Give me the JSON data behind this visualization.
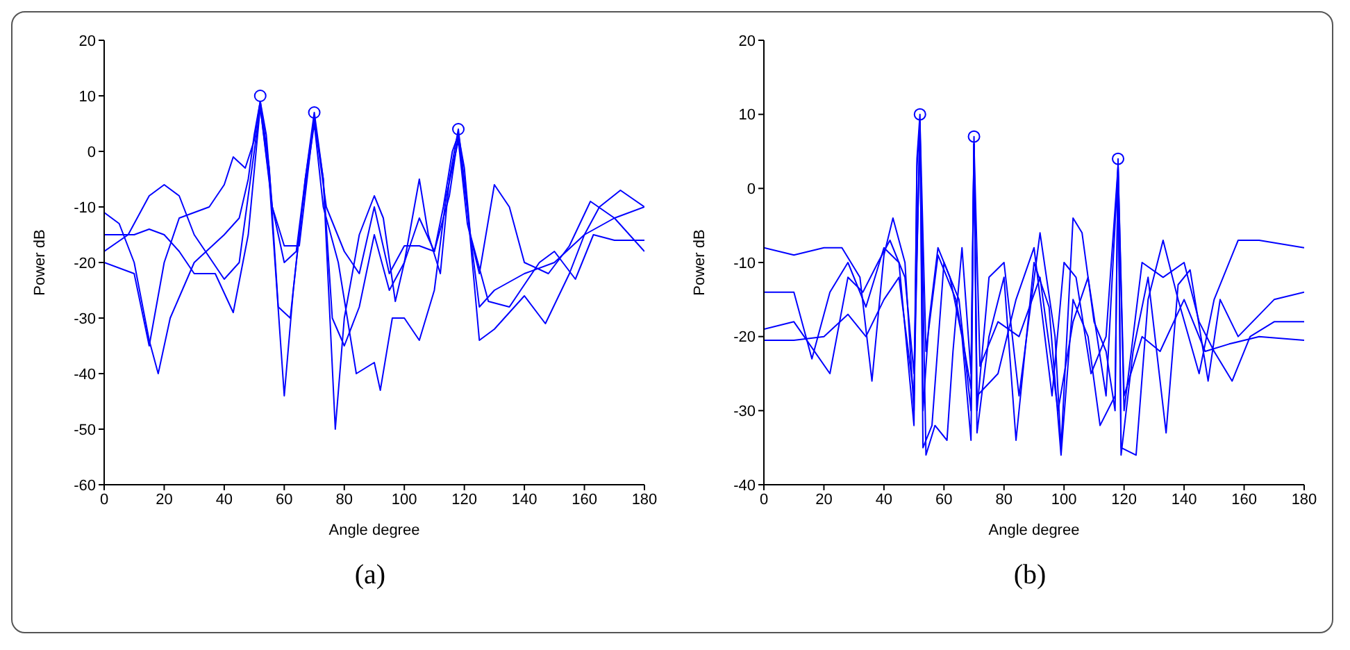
{
  "chart_data": [
    {
      "type": "line",
      "xlabel": "Angle degree",
      "ylabel": "Power dB",
      "annotations": [
        "(a)"
      ],
      "xlim": [
        0,
        180
      ],
      "xticks": [
        0,
        20,
        40,
        60,
        80,
        100,
        120,
        140,
        160,
        180
      ],
      "ylim": [
        -60,
        20
      ],
      "yticks": [
        -60,
        -50,
        -40,
        -30,
        -20,
        -10,
        0,
        10,
        20
      ],
      "series": [
        {
          "color": "#0000ff",
          "x": [
            0,
            5,
            10,
            15,
            18,
            22,
            30,
            40,
            45,
            48,
            50,
            52,
            54,
            56,
            60,
            64,
            67,
            70,
            73,
            76,
            80,
            85,
            90,
            95,
            100,
            105,
            110,
            113,
            116,
            118,
            120,
            122,
            125,
            130,
            140,
            150,
            160,
            170,
            180
          ],
          "values": [
            -11,
            -13,
            -20,
            -34,
            -40,
            -30,
            -20,
            -15,
            -12,
            -5,
            3,
            9,
            3,
            -10,
            -20,
            -18,
            -5,
            6,
            -5,
            -30,
            -35,
            -28,
            -15,
            -25,
            -20,
            -12,
            -18,
            -10,
            0,
            3,
            -3,
            -15,
            -28,
            -25,
            -22,
            -20,
            -15,
            -12,
            -10
          ]
        },
        {
          "color": "#0000ff",
          "x": [
            0,
            8,
            15,
            20,
            25,
            30,
            40,
            45,
            50,
            52,
            55,
            60,
            63,
            67,
            70,
            73,
            77,
            80,
            85,
            90,
            93,
            97,
            100,
            105,
            108,
            112,
            115,
            118,
            121,
            125,
            130,
            140,
            147,
            155,
            160,
            165,
            172,
            180
          ],
          "values": [
            -18,
            -15,
            -8,
            -6,
            -8,
            -15,
            -23,
            -20,
            0,
            8,
            -5,
            -44,
            -25,
            -5,
            7,
            -5,
            -50,
            -30,
            -15,
            -8,
            -12,
            -27,
            -20,
            -5,
            -15,
            -22,
            -5,
            4,
            -10,
            -34,
            -32,
            -26,
            -31,
            -22,
            -15,
            -10,
            -7,
            -10
          ]
        },
        {
          "color": "#0000ff",
          "x": [
            0,
            10,
            15,
            20,
            25,
            35,
            40,
            43,
            47,
            50,
            52,
            55,
            58,
            62,
            66,
            70,
            73,
            78,
            84,
            90,
            92,
            96,
            100,
            105,
            110,
            114,
            118,
            121,
            125,
            130,
            135,
            140,
            148,
            155,
            162,
            170,
            180
          ],
          "values": [
            -20,
            -22,
            -35,
            -20,
            -12,
            -10,
            -6,
            -1,
            -3,
            2,
            9,
            -3,
            -28,
            -30,
            -10,
            5,
            -10,
            -20,
            -40,
            -38,
            -43,
            -30,
            -30,
            -34,
            -25,
            -8,
            2,
            -13,
            -22,
            -6,
            -10,
            -20,
            -22,
            -17,
            -9,
            -12,
            -18
          ]
        },
        {
          "color": "#0000ff",
          "x": [
            0,
            10,
            15,
            20,
            25,
            30,
            37,
            43,
            48,
            52,
            56,
            60,
            65,
            70,
            74,
            80,
            85,
            90,
            95,
            100,
            105,
            110,
            115,
            118,
            122,
            128,
            135,
            145,
            150,
            157,
            163,
            170,
            180
          ],
          "values": [
            -15,
            -15,
            -14,
            -15,
            -18,
            -22,
            -22,
            -29,
            -15,
            8,
            -10,
            -17,
            -17,
            6,
            -10,
            -18,
            -22,
            -10,
            -22,
            -17,
            -17,
            -18,
            -8,
            3,
            -15,
            -27,
            -28,
            -20,
            -18,
            -23,
            -15,
            -16,
            -16
          ]
        },
        {
          "type": "scatter",
          "marker": "circle",
          "color": "#0000ff",
          "x": [
            52,
            70,
            118
          ],
          "values": [
            10,
            7,
            4
          ]
        }
      ]
    },
    {
      "type": "line",
      "xlabel": "Angle degree",
      "ylabel": "Power dB",
      "annotations": [
        "(b)"
      ],
      "xlim": [
        0,
        180
      ],
      "xticks": [
        0,
        20,
        40,
        60,
        80,
        100,
        120,
        140,
        160,
        180
      ],
      "ylim": [
        -40,
        20
      ],
      "yticks": [
        -40,
        -30,
        -20,
        -10,
        0,
        10,
        20
      ],
      "series": [
        {
          "color": "#0000ff",
          "x": [
            0,
            10,
            20,
            26,
            32,
            36,
            40,
            43,
            47,
            50,
            51,
            52,
            53,
            55,
            58,
            62,
            66,
            69,
            70,
            71,
            75,
            80,
            85,
            92,
            97,
            99,
            103,
            106,
            110,
            114,
            117,
            118,
            119,
            124,
            128,
            133,
            138,
            145,
            150,
            158,
            165,
            180
          ],
          "values": [
            -8,
            -9,
            -8,
            -8,
            -12,
            -26,
            -9,
            -4,
            -10,
            -30,
            4,
            10,
            -30,
            -18,
            -8,
            -12,
            -20,
            -34,
            7,
            -30,
            -12,
            -10,
            -28,
            -6,
            -20,
            -35,
            -4,
            -6,
            -18,
            -22,
            -30,
            4,
            -35,
            -36,
            -15,
            -7,
            -15,
            -25,
            -15,
            -7,
            -7,
            -8
          ]
        },
        {
          "color": "#0000ff",
          "x": [
            0,
            10,
            16,
            22,
            28,
            34,
            40,
            45,
            50,
            51,
            52,
            53,
            56,
            60,
            65,
            69,
            70,
            71,
            75,
            80,
            84,
            90,
            95,
            99,
            103,
            108,
            112,
            117,
            118,
            119,
            123,
            128,
            134,
            138,
            142,
            148,
            152,
            158,
            170,
            180
          ],
          "values": [
            -14,
            -14,
            -23,
            -14,
            -10,
            -16,
            -8,
            -10,
            -32,
            3,
            9,
            -35,
            -32,
            -10,
            -15,
            -30,
            6,
            -33,
            -20,
            -12,
            -34,
            -10,
            -16,
            -36,
            -15,
            -20,
            -32,
            -28,
            3,
            -36,
            -22,
            -12,
            -33,
            -13,
            -11,
            -26,
            -15,
            -20,
            -15,
            -14
          ]
        },
        {
          "color": "#0000ff",
          "x": [
            0,
            10,
            22,
            28,
            33,
            38,
            42,
            47,
            50,
            52,
            54,
            57,
            61,
            63,
            66,
            69,
            70,
            71,
            78,
            84,
            90,
            96,
            100,
            104,
            109,
            114,
            118,
            120,
            126,
            133,
            140,
            145,
            150,
            156,
            162,
            170,
            180
          ],
          "values": [
            -19,
            -18,
            -25,
            -12,
            -14,
            -10,
            -7,
            -12,
            -25,
            8,
            -36,
            -32,
            -34,
            -22,
            -8,
            -25,
            6,
            -28,
            -25,
            -15,
            -8,
            -28,
            -10,
            -12,
            -25,
            -20,
            3,
            -30,
            -10,
            -12,
            -10,
            -18,
            -22,
            -26,
            -20,
            -18,
            -18
          ]
        },
        {
          "color": "#0000ff",
          "x": [
            0,
            10,
            20,
            28,
            34,
            40,
            45,
            50,
            52,
            54,
            58,
            64,
            69,
            70,
            72,
            78,
            85,
            92,
            98,
            103,
            108,
            114,
            118,
            120,
            126,
            132,
            140,
            147,
            155,
            165,
            180
          ],
          "values": [
            -20.5,
            -20.5,
            -20,
            -17,
            -20,
            -15,
            -12,
            -28,
            9,
            -22,
            -9,
            -15,
            -27,
            6,
            -24,
            -18,
            -20,
            -12,
            -30,
            -18,
            -12,
            -28,
            3,
            -28,
            -20,
            -22,
            -15,
            -22,
            -21,
            -20,
            -20.5
          ]
        },
        {
          "type": "scatter",
          "marker": "circle",
          "color": "#0000ff",
          "x": [
            52,
            70,
            118
          ],
          "values": [
            10,
            7,
            4
          ]
        }
      ]
    }
  ]
}
